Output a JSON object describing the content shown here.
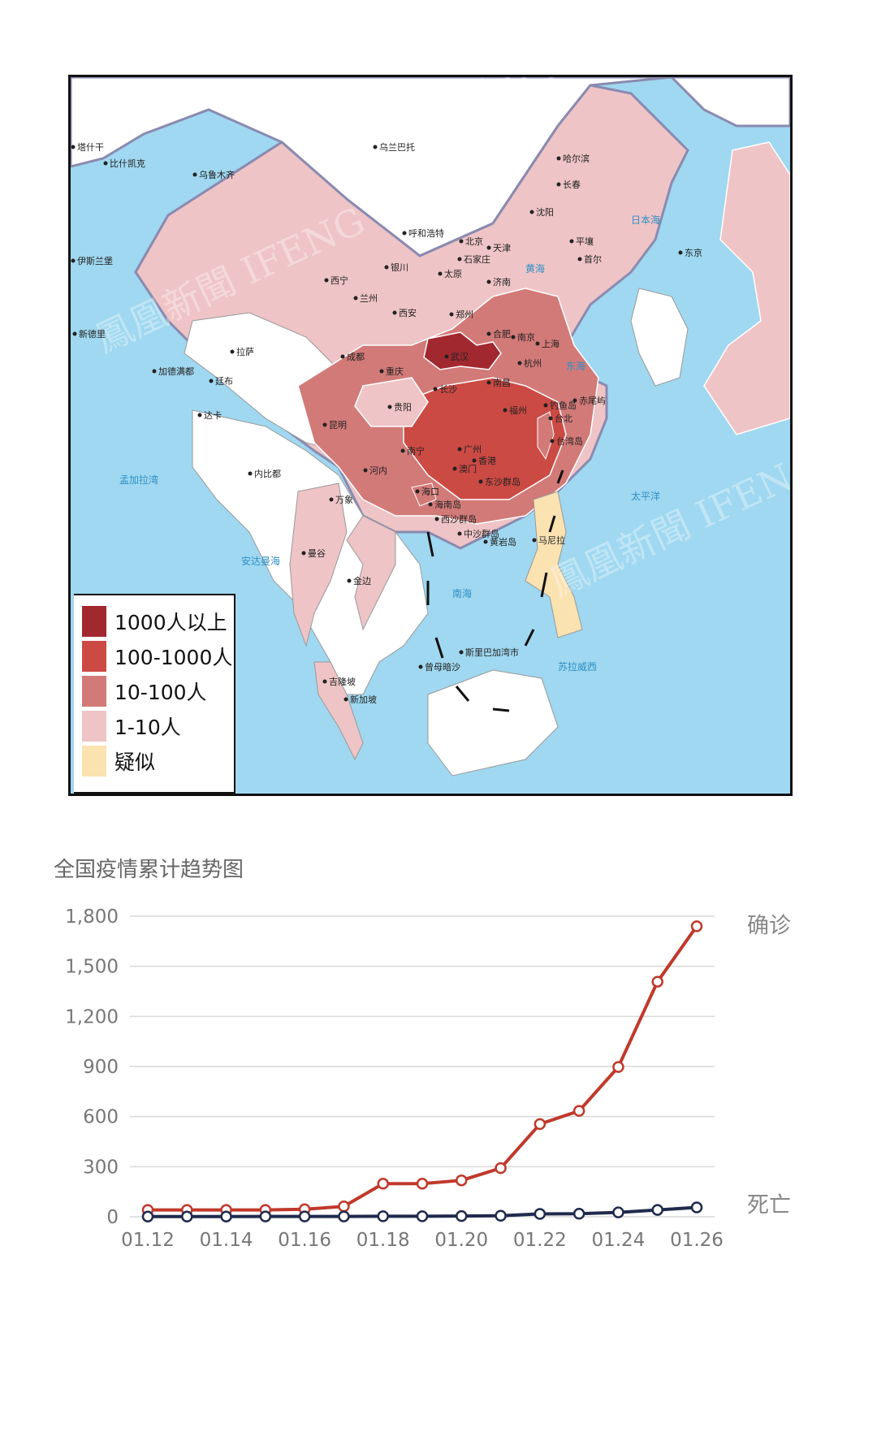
{
  "map": {
    "cities": [
      "乌兰巴托",
      "乌鲁木齐",
      "比什凯克",
      "塔什干",
      "新德里",
      "哈尔滨",
      "长春",
      "沈阳",
      "呼和浩特",
      "北京",
      "天津",
      "石家庄",
      "平壤",
      "首尔",
      "东京",
      "银川",
      "太原",
      "西宁",
      "兰州",
      "济南",
      "西安",
      "郑州",
      "合肥",
      "南京",
      "上海",
      "杭州",
      "拉萨",
      "成都",
      "武汉",
      "重庆",
      "长沙",
      "南昌",
      "福州",
      "贵阳",
      "昆明",
      "钓鱼岛",
      "赤尾屿",
      "台北",
      "台湾岛",
      "南宁",
      "广州",
      "香港",
      "澳门",
      "海口",
      "海南岛",
      "东沙群岛",
      "河内",
      "内比都",
      "万象",
      "达卡",
      "曼谷",
      "金边",
      "马尼拉",
      "吉隆坡",
      "新加坡",
      "斯里巴加湾市",
      "曾母暗沙",
      "西沙群岛",
      "中沙群岛",
      "黄岩岛",
      "加德满都",
      "廷布",
      "伊斯兰堡"
    ],
    "sea_labels": [
      "日本海",
      "东海",
      "黄海",
      "南海",
      "孟加拉湾",
      "太平洋",
      "安达曼海",
      "苏拉威西"
    ],
    "watermark": "鳳凰新聞 IFENG NEWS"
  },
  "legend": {
    "items": [
      {
        "label": "1000人以上",
        "color": "#a22830"
      },
      {
        "label": "100-1000人",
        "color": "#cc4a44"
      },
      {
        "label": "10-100人",
        "color": "#d27a78"
      },
      {
        "label": "1-10人",
        "color": "#efc4c6"
      },
      {
        "label": "疑似",
        "color": "#fbe2b1"
      }
    ]
  },
  "colors": {
    "confirmed": "#c0392b",
    "deaths": "#1f2a4d",
    "grid": "#d9d9d9"
  },
  "chart_data": {
    "type": "line",
    "title": "全国疫情累计趋势图",
    "x": [
      "01.12",
      "01.13",
      "01.14",
      "01.15",
      "01.16",
      "01.17",
      "01.18",
      "01.19",
      "01.20",
      "01.21",
      "01.22",
      "01.23",
      "01.24",
      "01.25",
      "01.26"
    ],
    "x_ticks": [
      "01.12",
      "01.14",
      "01.16",
      "01.18",
      "01.20",
      "01.22",
      "01.24",
      "01.26"
    ],
    "y_ticks": [
      "0",
      "300",
      "600",
      "900",
      "1,200",
      "1,500",
      "1,800"
    ],
    "ylim": [
      0,
      1800
    ],
    "series": [
      {
        "name": "确诊",
        "values": [
          41,
          41,
          41,
          41,
          45,
          62,
          198,
          198,
          218,
          291,
          555,
          634,
          897,
          1408,
          1740
        ]
      },
      {
        "name": "死亡",
        "values": [
          1,
          1,
          1,
          2,
          2,
          2,
          3,
          3,
          4,
          6,
          17,
          18,
          26,
          41,
          56
        ]
      }
    ],
    "grid": true
  }
}
